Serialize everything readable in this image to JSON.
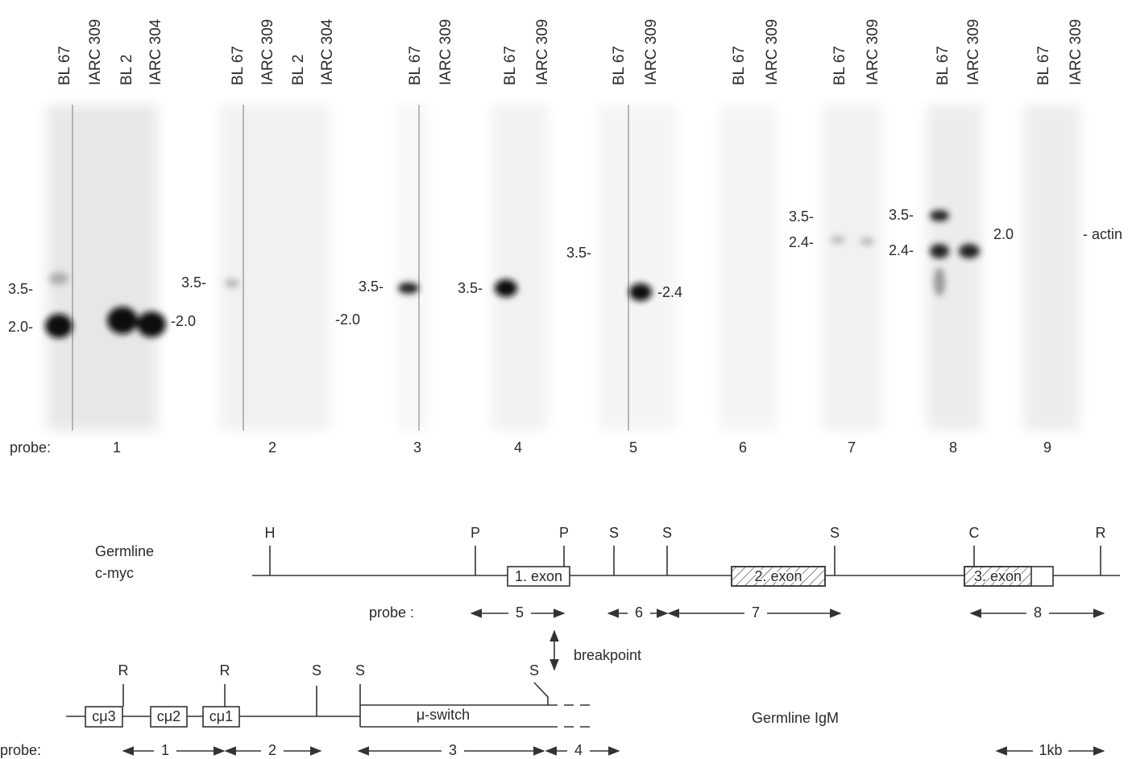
{
  "blot": {
    "probe_label": "probe:",
    "panels": [
      {
        "lanes": [
          "BL 67",
          "IARC 309",
          "BL 2",
          "IARC 304"
        ],
        "left_markers": [
          "3.5-",
          "2.0-"
        ],
        "right_markers": [
          "-2.0"
        ],
        "probe": "1"
      },
      {
        "lanes": [
          "BL 67",
          "IARC 309",
          "BL 2",
          "IARC 304"
        ],
        "left_markers": [
          "3.5-"
        ],
        "right_markers": [
          "-2.0"
        ],
        "probe": "2"
      },
      {
        "lanes": [
          "BL 67",
          "IARC 309"
        ],
        "left_markers": [
          "3.5-"
        ],
        "probe": "3"
      },
      {
        "lanes": [
          "BL 67",
          "IARC 309"
        ],
        "left_markers": [
          "3.5-"
        ],
        "probe": "4"
      },
      {
        "lanes": [
          "BL 67",
          "IARC 309"
        ],
        "left_markers": [
          "3.5-"
        ],
        "right_markers": [
          "-2.4"
        ],
        "probe": "5"
      },
      {
        "lanes": [
          "BL 67",
          "IARC 309"
        ],
        "probe": "6"
      },
      {
        "lanes": [
          "BL 67",
          "IARC 309"
        ],
        "left_markers": [
          "3.5-",
          "2.4-"
        ],
        "probe": "7"
      },
      {
        "lanes": [
          "BL 67",
          "IARC 309"
        ],
        "left_markers": [
          "3.5-",
          "2.4-"
        ],
        "right_markers": [
          "2.0"
        ],
        "probe": "8"
      },
      {
        "lanes": [
          "BL 67",
          "IARC 309"
        ],
        "right_markers": [
          "- actin"
        ],
        "probe": "9"
      }
    ]
  },
  "cmyc_map": {
    "label_lines": [
      "Germline",
      "c-myc"
    ],
    "sites": [
      "H",
      "P",
      "P",
      "S",
      "S",
      "S",
      "C",
      "R"
    ],
    "exons": [
      "1. exon",
      "2. exon",
      "3. exon"
    ],
    "probe_label": "probe :",
    "probes": [
      "5",
      "6",
      "7",
      "8"
    ],
    "breakpoint": "breakpoint"
  },
  "igm_map": {
    "sites": [
      "R",
      "R",
      "S",
      "S",
      "S"
    ],
    "constant_regions": [
      "cμ3",
      "cμ2",
      "cμ1"
    ],
    "switch": "μ-switch",
    "label": "Germline IgM",
    "probe_label": "probe:",
    "probes": [
      "1",
      "2",
      "3",
      "4"
    ],
    "scale": "1kb"
  }
}
